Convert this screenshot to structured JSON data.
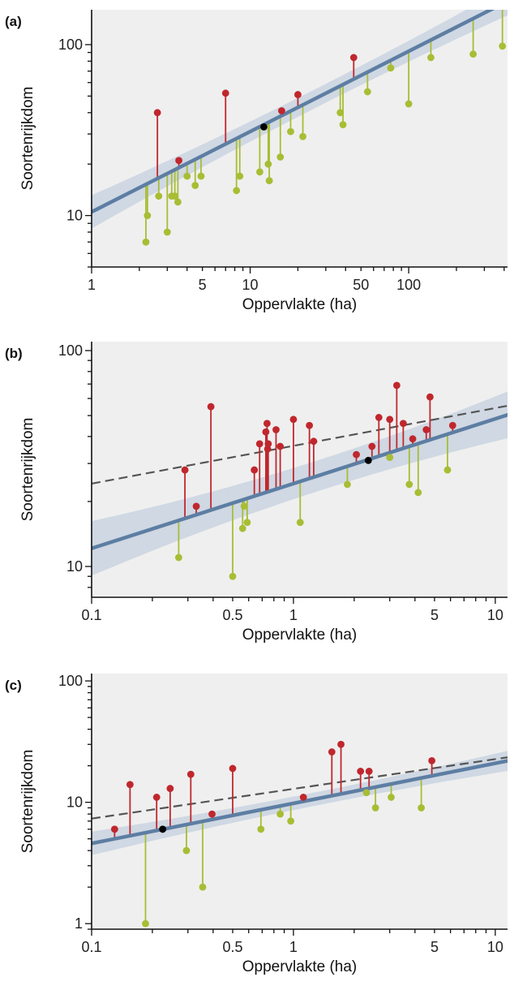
{
  "colors": {
    "background": "#efefef",
    "band": "#c9d3e0",
    "fit_line": "#5d7ea3",
    "dashed_line": "#555555",
    "above": "#c0272d",
    "below": "#a8bd34",
    "on_line": "#000000"
  },
  "chart_data": [
    {
      "type": "scatter",
      "panel_label": "(a)",
      "xlabel": "Oppervlakte (ha)",
      "ylabel": "Soortenrijkdom",
      "xscale": "log",
      "yscale": "log",
      "xlim": [
        1,
        420
      ],
      "ylim": [
        5,
        160
      ],
      "xticks": [
        1,
        5,
        10,
        50,
        100
      ],
      "xtick_labels": [
        "1",
        "5",
        "10",
        "50",
        "100"
      ],
      "yticks": [
        10,
        100
      ],
      "ytick_labels": [
        "10",
        "100"
      ],
      "fit": {
        "c": 10.5,
        "z": 0.47,
        "band": 0.1
      },
      "dashed": null,
      "points": [
        {
          "x": 2.2,
          "y": 7
        },
        {
          "x": 2.25,
          "y": 10
        },
        {
          "x": 2.6,
          "y": 40
        },
        {
          "x": 2.65,
          "y": 13
        },
        {
          "x": 3.0,
          "y": 8
        },
        {
          "x": 3.2,
          "y": 13
        },
        {
          "x": 3.35,
          "y": 13
        },
        {
          "x": 3.5,
          "y": 12
        },
        {
          "x": 3.55,
          "y": 21
        },
        {
          "x": 4.0,
          "y": 17
        },
        {
          "x": 4.5,
          "y": 15
        },
        {
          "x": 4.9,
          "y": 17
        },
        {
          "x": 7.0,
          "y": 52
        },
        {
          "x": 8.2,
          "y": 14
        },
        {
          "x": 8.6,
          "y": 17
        },
        {
          "x": 11.5,
          "y": 18
        },
        {
          "x": 12.2,
          "y": 33
        },
        {
          "x": 13.0,
          "y": 20
        },
        {
          "x": 13.2,
          "y": 16
        },
        {
          "x": 15.5,
          "y": 22
        },
        {
          "x": 15.8,
          "y": 41
        },
        {
          "x": 18.0,
          "y": 31
        },
        {
          "x": 20.0,
          "y": 51
        },
        {
          "x": 21.5,
          "y": 29
        },
        {
          "x": 37.0,
          "y": 40
        },
        {
          "x": 38.5,
          "y": 34
        },
        {
          "x": 45.0,
          "y": 84
        },
        {
          "x": 55.0,
          "y": 53
        },
        {
          "x": 77.0,
          "y": 73
        },
        {
          "x": 100.0,
          "y": 45
        },
        {
          "x": 138.0,
          "y": 84
        },
        {
          "x": 255.0,
          "y": 88
        },
        {
          "x": 390.0,
          "y": 98
        }
      ]
    },
    {
      "type": "scatter",
      "panel_label": "(b)",
      "xlabel": "Oppervlakte (ha)",
      "ylabel": "Soortenrijkdom",
      "xscale": "log",
      "yscale": "log",
      "xlim": [
        0.1,
        11.5
      ],
      "ylim": [
        7.2,
        110
      ],
      "xticks": [
        0.1,
        0.5,
        1,
        5,
        10
      ],
      "xtick_labels": [
        "0.1",
        "0.5",
        "1",
        "5",
        "10"
      ],
      "yticks": [
        10,
        100
      ],
      "ytick_labels": [
        "10",
        "100"
      ],
      "fit": {
        "c": 24.2,
        "z": 0.3,
        "band": 0.13
      },
      "dashed": {
        "c": 36.2,
        "z": 0.175
      },
      "points": [
        {
          "x": 0.27,
          "y": 11
        },
        {
          "x": 0.29,
          "y": 28
        },
        {
          "x": 0.33,
          "y": 19
        },
        {
          "x": 0.39,
          "y": 55
        },
        {
          "x": 0.5,
          "y": 9
        },
        {
          "x": 0.56,
          "y": 15
        },
        {
          "x": 0.57,
          "y": 19
        },
        {
          "x": 0.59,
          "y": 16
        },
        {
          "x": 0.64,
          "y": 28
        },
        {
          "x": 0.68,
          "y": 37
        },
        {
          "x": 0.73,
          "y": 42
        },
        {
          "x": 0.74,
          "y": 46
        },
        {
          "x": 0.745,
          "y": 35
        },
        {
          "x": 0.75,
          "y": 37
        },
        {
          "x": 0.82,
          "y": 43
        },
        {
          "x": 0.86,
          "y": 36
        },
        {
          "x": 1.0,
          "y": 48
        },
        {
          "x": 1.08,
          "y": 16
        },
        {
          "x": 1.2,
          "y": 45
        },
        {
          "x": 1.26,
          "y": 38
        },
        {
          "x": 1.85,
          "y": 24
        },
        {
          "x": 2.05,
          "y": 33
        },
        {
          "x": 2.35,
          "y": 31
        },
        {
          "x": 2.45,
          "y": 36
        },
        {
          "x": 2.65,
          "y": 49
        },
        {
          "x": 3.0,
          "y": 32
        },
        {
          "x": 3.0,
          "y": 48
        },
        {
          "x": 3.25,
          "y": 69
        },
        {
          "x": 3.5,
          "y": 46
        },
        {
          "x": 3.75,
          "y": 24
        },
        {
          "x": 3.9,
          "y": 39
        },
        {
          "x": 4.15,
          "y": 22
        },
        {
          "x": 4.55,
          "y": 43
        },
        {
          "x": 4.75,
          "y": 61
        },
        {
          "x": 5.8,
          "y": 28
        },
        {
          "x": 6.15,
          "y": 45
        }
      ]
    },
    {
      "type": "scatter",
      "panel_label": "(c)",
      "xlabel": "Oppervlakte (ha)",
      "ylabel": "Soortenrijkdom",
      "xscale": "log",
      "yscale": "log",
      "xlim": [
        0.1,
        11.5
      ],
      "ylim": [
        0.9,
        115
      ],
      "xticks": [
        0.1,
        0.5,
        1,
        5,
        10
      ],
      "xtick_labels": [
        "0.1",
        "0.5",
        "1",
        "5",
        "10"
      ],
      "yticks": [
        1,
        10,
        100
      ],
      "ytick_labels": [
        "1",
        "10",
        "100"
      ],
      "fit": {
        "c": 9.8,
        "z": 0.33,
        "band": 0.1
      },
      "dashed": {
        "c": 12.9,
        "z": 0.245
      },
      "points": [
        {
          "x": 0.13,
          "y": 6
        },
        {
          "x": 0.155,
          "y": 14
        },
        {
          "x": 0.185,
          "y": 1
        },
        {
          "x": 0.21,
          "y": 11
        },
        {
          "x": 0.225,
          "y": 6
        },
        {
          "x": 0.245,
          "y": 13
        },
        {
          "x": 0.295,
          "y": 4
        },
        {
          "x": 0.31,
          "y": 17
        },
        {
          "x": 0.355,
          "y": 2
        },
        {
          "x": 0.395,
          "y": 8
        },
        {
          "x": 0.5,
          "y": 19
        },
        {
          "x": 0.69,
          "y": 6
        },
        {
          "x": 0.86,
          "y": 8
        },
        {
          "x": 0.97,
          "y": 7
        },
        {
          "x": 1.12,
          "y": 11
        },
        {
          "x": 1.55,
          "y": 26
        },
        {
          "x": 1.72,
          "y": 30
        },
        {
          "x": 2.15,
          "y": 18
        },
        {
          "x": 2.3,
          "y": 12
        },
        {
          "x": 2.37,
          "y": 18
        },
        {
          "x": 2.55,
          "y": 9
        },
        {
          "x": 3.05,
          "y": 11
        },
        {
          "x": 4.3,
          "y": 9
        },
        {
          "x": 4.85,
          "y": 22
        }
      ]
    }
  ]
}
